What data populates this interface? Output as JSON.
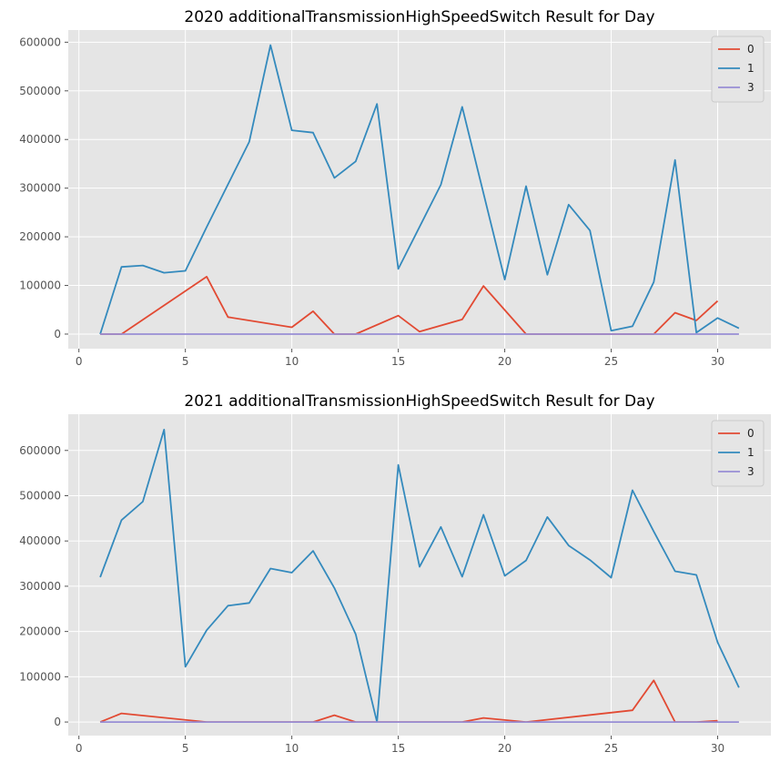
{
  "chart_data": [
    {
      "type": "line",
      "title": "2020 additionalTransmissionHighSpeedSwitch Result for Day",
      "xlabel": "",
      "ylabel": "",
      "xlim": [
        -0.5,
        32.5
      ],
      "ylim": [
        -30000,
        625000
      ],
      "xticks": [
        0,
        5,
        10,
        15,
        20,
        25,
        30
      ],
      "yticks": [
        0,
        100000,
        200000,
        300000,
        400000,
        500000,
        600000
      ],
      "grid": true,
      "legend_position": "top-right",
      "series": [
        {
          "name": "0",
          "color": "#e24a33",
          "x": [
            1,
            2,
            6,
            7,
            10,
            11,
            12,
            13,
            15,
            16,
            18,
            19,
            21,
            22,
            23,
            24,
            25,
            26,
            27,
            28,
            29,
            30
          ],
          "y": [
            0,
            0,
            118000,
            35000,
            14000,
            47000,
            0,
            0,
            38000,
            5000,
            30000,
            99000,
            0,
            0,
            0,
            0,
            0,
            0,
            0,
            44000,
            28000,
            68000
          ]
        },
        {
          "name": "1",
          "color": "#348abd",
          "x": [
            1,
            2,
            3,
            4,
            5,
            6,
            8,
            9,
            10,
            11,
            12,
            13,
            14,
            15,
            17,
            18,
            20,
            21,
            22,
            23,
            24,
            25,
            26,
            27,
            28,
            29,
            30,
            31
          ],
          "y": [
            0,
            138000,
            141000,
            126000,
            130000,
            220000,
            395000,
            594000,
            419000,
            414000,
            321000,
            355000,
            473000,
            134000,
            307000,
            467000,
            112000,
            304000,
            122000,
            266000,
            213000,
            7000,
            16000,
            107000,
            358000,
            3000,
            33000,
            12000
          ]
        },
        {
          "name": "3",
          "color": "#988ed5",
          "x": [
            1,
            2,
            3,
            4,
            5,
            6,
            7,
            8,
            9,
            10,
            11,
            12,
            13,
            14,
            15,
            16,
            17,
            18,
            19,
            20,
            21,
            22,
            23,
            24,
            25,
            26,
            27,
            28,
            29,
            30,
            31
          ],
          "y": [
            0,
            0,
            0,
            0,
            0,
            0,
            0,
            0,
            0,
            0,
            0,
            0,
            0,
            0,
            0,
            0,
            0,
            0,
            0,
            0,
            0,
            0,
            0,
            0,
            0,
            0,
            0,
            0,
            0,
            0,
            0
          ]
        }
      ]
    },
    {
      "type": "line",
      "title": "2021 additionalTransmissionHighSpeedSwitch Result for Day",
      "xlabel": "",
      "ylabel": "",
      "xlim": [
        -0.5,
        32.5
      ],
      "ylim": [
        -30000,
        680000
      ],
      "xticks": [
        0,
        5,
        10,
        15,
        20,
        25,
        30
      ],
      "yticks": [
        0,
        100000,
        200000,
        300000,
        400000,
        500000,
        600000
      ],
      "grid": true,
      "legend_position": "top-right",
      "series": [
        {
          "name": "0",
          "color": "#e24a33",
          "x": [
            1,
            2,
            6,
            7,
            11,
            12,
            13,
            18,
            19,
            21,
            26,
            27,
            28,
            29,
            30
          ],
          "y": [
            0,
            19000,
            0,
            0,
            0,
            15000,
            0,
            0,
            9000,
            0,
            26000,
            92000,
            0,
            0,
            3000
          ]
        },
        {
          "name": "1",
          "color": "#348abd",
          "x": [
            1,
            2,
            3,
            4,
            5,
            6,
            7,
            8,
            9,
            10,
            11,
            12,
            13,
            14,
            15,
            16,
            17,
            18,
            19,
            20,
            21,
            22,
            23,
            24,
            25,
            26,
            27,
            28,
            29,
            30,
            31
          ],
          "y": [
            320000,
            446000,
            487000,
            646000,
            122000,
            203000,
            257000,
            263000,
            339000,
            330000,
            378000,
            296000,
            194000,
            0,
            568000,
            343000,
            431000,
            321000,
            458000,
            323000,
            357000,
            453000,
            390000,
            358000,
            319000,
            512000,
            421000,
            333000,
            325000,
            176000,
            76000
          ]
        },
        {
          "name": "3",
          "color": "#988ed5",
          "x": [
            1,
            2,
            3,
            4,
            5,
            6,
            7,
            8,
            9,
            10,
            11,
            12,
            13,
            14,
            15,
            16,
            17,
            18,
            19,
            20,
            21,
            22,
            23,
            24,
            25,
            26,
            27,
            28,
            29,
            30,
            31
          ],
          "y": [
            0,
            0,
            0,
            0,
            0,
            0,
            0,
            0,
            0,
            0,
            0,
            0,
            0,
            0,
            0,
            0,
            0,
            0,
            0,
            0,
            0,
            0,
            0,
            0,
            0,
            0,
            0,
            0,
            0,
            0,
            0
          ]
        }
      ]
    }
  ]
}
